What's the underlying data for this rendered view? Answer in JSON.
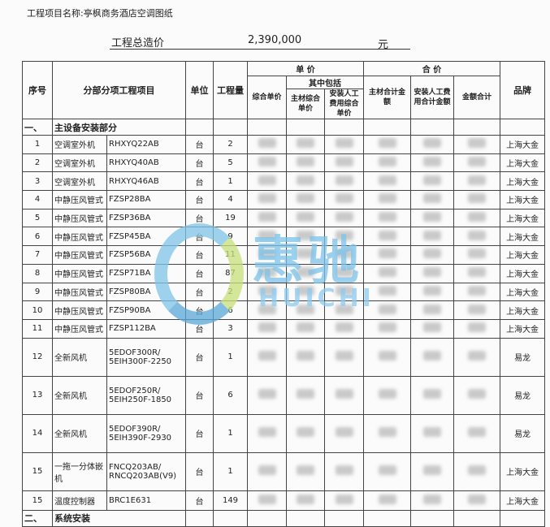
{
  "project_name": "工程项目名称:亭枫商务酒店空调图纸",
  "total": {
    "label": "工程总造价",
    "value": "2,390,000",
    "unit": "元"
  },
  "headers": {
    "seq": "序号",
    "item": "分部分项工程项目",
    "unit": "单位",
    "qty": "工程量",
    "unit_price": "单  价",
    "total_price": "合  价",
    "composite_unit_price": "综合单价",
    "including": "其中包括",
    "material_unit_price": "主材综合单价",
    "labor_unit_price": "安装人工费用综合单价",
    "material_total": "主材合计金额",
    "labor_total": "安装人工费用合计金额",
    "amount_total": "金额合计",
    "brand": "品牌"
  },
  "section1": {
    "seq": "一、",
    "title": "主设备安装部分"
  },
  "rows": [
    {
      "seq": "1",
      "name": "空调室外机",
      "model": "RHXYQ22AB",
      "unit": "台",
      "qty": "2",
      "brand": "上海大金"
    },
    {
      "seq": "2",
      "name": "空调室外机",
      "model": "RHXYQ40AB",
      "unit": "台",
      "qty": "5",
      "brand": "上海大金"
    },
    {
      "seq": "3",
      "name": "空调室外机",
      "model": "RHXYQ46AB",
      "unit": "台",
      "qty": "1",
      "brand": "上海大金"
    },
    {
      "seq": "4",
      "name": "中静压风管式",
      "model": "FZSP28BA",
      "unit": "台",
      "qty": "4",
      "brand": "上海大金"
    },
    {
      "seq": "5",
      "name": "中静压风管式",
      "model": "FZSP36BA",
      "unit": "台",
      "qty": "19",
      "brand": "上海大金"
    },
    {
      "seq": "6",
      "name": "中静压风管式",
      "model": "FZSP45BA",
      "unit": "台",
      "qty": "9",
      "brand": "上海大金"
    },
    {
      "seq": "7",
      "name": "中静压风管式",
      "model": "FZSP56BA",
      "unit": "台",
      "qty": "11",
      "brand": "上海大金"
    },
    {
      "seq": "8",
      "name": "中静压风管式",
      "model": "FZSP71BA",
      "unit": "台",
      "qty": "87",
      "brand": "上海大金"
    },
    {
      "seq": "9",
      "name": "中静压风管式",
      "model": "FZSP80BA",
      "unit": "台",
      "qty": "2",
      "brand": "上海大金"
    },
    {
      "seq": "10",
      "name": "中静压风管式",
      "model": "FZSP90BA",
      "unit": "台",
      "qty": "6",
      "brand": "上海大金"
    },
    {
      "seq": "11",
      "name": "中静压风管式",
      "model": "FZSP112BA",
      "unit": "台",
      "qty": "3",
      "brand": "上海大金"
    },
    {
      "seq": "12",
      "name": "全新风机",
      "model": "5EDOF300R/ 5EIH300F-2250",
      "unit": "台",
      "qty": "1",
      "brand": "易龙"
    },
    {
      "seq": "13",
      "name": "全新风机",
      "model": "5EDOF250R/ 5EIH250F-1850",
      "unit": "台",
      "qty": "6",
      "brand": "易龙"
    },
    {
      "seq": "14",
      "name": "全新风机",
      "model": "5EDOF390R/ 5EIH390F-2930",
      "unit": "台",
      "qty": "1",
      "brand": "易龙"
    },
    {
      "seq": "15",
      "name": "一拖一分体嵌机",
      "model": "FNCQ203AB/ RNCQ203AB(V9)",
      "unit": "台",
      "qty": "1",
      "brand": "上海大金"
    },
    {
      "seq": "15",
      "name": "温度控制器",
      "model": "BRC1E631",
      "unit": "台",
      "qty": "149",
      "brand": "上海大金"
    }
  ],
  "section2": {
    "seq": "二、",
    "title": "系统安装"
  },
  "watermark": {
    "cn": "惠驰",
    "en": "HUICHI"
  }
}
